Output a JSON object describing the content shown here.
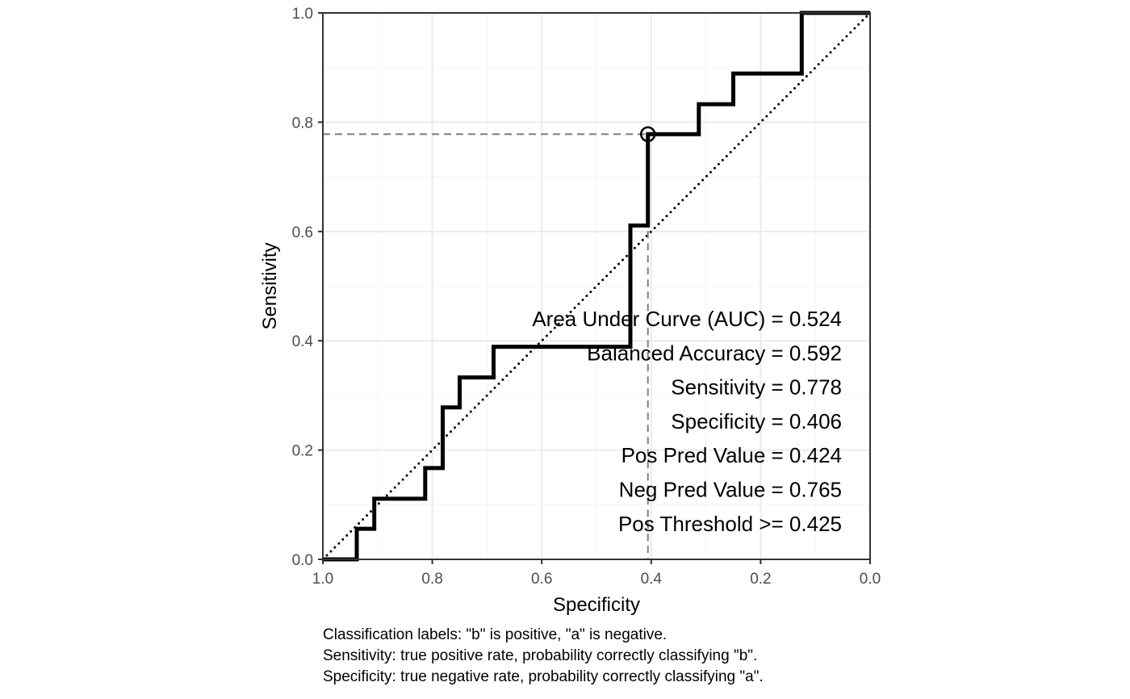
{
  "chart_data": {
    "type": "line",
    "xlabel": "Specificity",
    "ylabel": "Sensitivity",
    "xlim": [
      1.0,
      0.0
    ],
    "ylim": [
      0.0,
      1.0
    ],
    "x_reversed": true,
    "grid": true,
    "x_ticks": [
      "1.0",
      "0.8",
      "0.6",
      "0.4",
      "0.2",
      "0.0"
    ],
    "y_ticks": [
      "0.0",
      "0.2",
      "0.4",
      "0.6",
      "0.8",
      "1.0"
    ],
    "roc_curve": {
      "specificity": [
        1.0,
        0.938,
        0.938,
        0.906,
        0.906,
        0.813,
        0.813,
        0.781,
        0.781,
        0.75,
        0.75,
        0.688,
        0.688,
        0.438,
        0.438,
        0.406,
        0.406,
        0.313,
        0.313,
        0.25,
        0.25,
        0.125,
        0.125,
        0.0
      ],
      "sensitivity": [
        0.0,
        0.0,
        0.056,
        0.056,
        0.111,
        0.111,
        0.167,
        0.167,
        0.278,
        0.278,
        0.333,
        0.333,
        0.389,
        0.389,
        0.611,
        0.611,
        0.778,
        0.778,
        0.833,
        0.833,
        0.889,
        0.889,
        1.0,
        1.0
      ]
    },
    "reference_line": {
      "from": [
        1.0,
        0.0
      ],
      "to": [
        0.0,
        1.0
      ],
      "style": "dotted"
    },
    "optimal_point": {
      "specificity": 0.406,
      "sensitivity": 0.778
    },
    "stats": [
      "Area Under Curve (AUC) = 0.524",
      "Balanced Accuracy = 0.592",
      "Sensitivity = 0.778",
      "Specificity = 0.406",
      "Pos Pred Value = 0.424",
      "Neg Pred Value = 0.765",
      "Pos Threshold >= 0.425"
    ],
    "caption": [
      "Classification labels: \"b\" is positive, \"a\" is negative.",
      "Sensitivity: true positive rate, probability correctly classifying \"b\".",
      "Specificity: true negative rate, probability correctly classifying \"a\"."
    ],
    "colors": {
      "curve": "#000000",
      "guide": "#7f7f7f",
      "grid_major": "#ebebeb",
      "grid_minor": "#f5f5f5",
      "border": "#333333"
    }
  }
}
